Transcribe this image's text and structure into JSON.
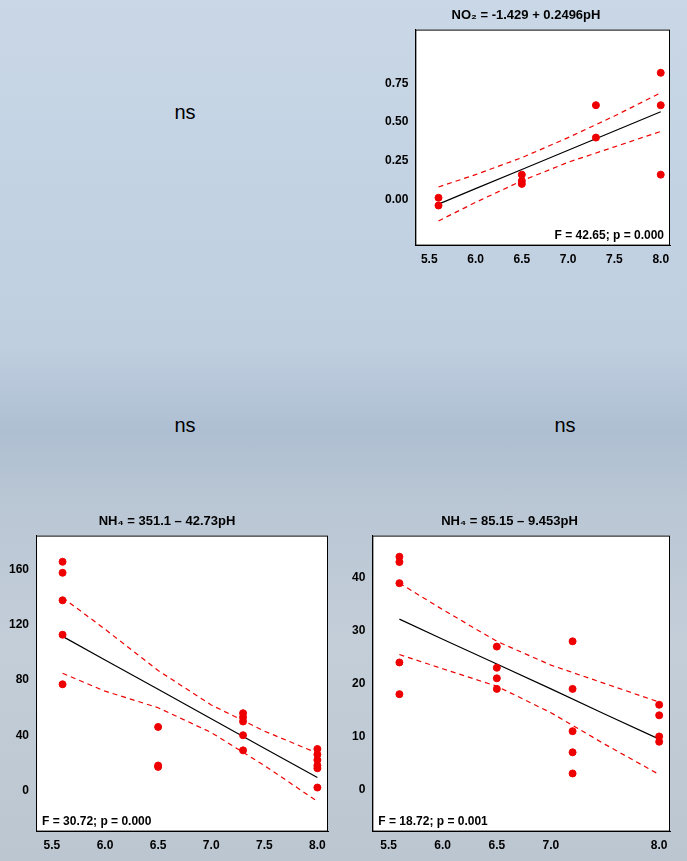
{
  "chart_data": [
    {
      "type": "scatter",
      "title": "NO₂ = -1.429 + 0.2496pH",
      "annotation": "F = 42.65; p = 0.000",
      "grid": false,
      "xlim": [
        5.35,
        8.1
      ],
      "xticks": [
        5.5,
        {
          "value": 6,
          "label": "6.0"
        },
        6.5,
        {
          "value": 7,
          "label": "7.0"
        },
        7.5,
        {
          "value": 8,
          "label": "8.0"
        }
      ],
      "ylim": [
        -0.3,
        1.1
      ],
      "yticks": [
        {
          "value": 0,
          "label": "0.00"
        },
        0.25,
        {
          "value": 0.5,
          "label": "0.50"
        },
        0.75
      ],
      "series": [
        {
          "type": "scatter",
          "color": "#ee0000",
          "marker": "circle",
          "x": [
            5.6,
            5.6,
            6.5,
            6.5,
            6.5,
            7.3,
            7.3,
            8.0,
            8.0,
            8.0
          ],
          "values": [
            0.01,
            -0.04,
            0.16,
            0.12,
            0.1,
            0.61,
            0.4,
            0.82,
            0.61,
            0.16
          ]
        },
        {
          "type": "line",
          "color": "#000000",
          "line_style": "solid",
          "x": [
            5.6,
            6.0,
            6.5,
            7.0,
            7.5,
            8.0
          ],
          "values": [
            -0.031,
            0.069,
            0.193,
            0.318,
            0.443,
            0.568
          ]
        },
        {
          "type": "line",
          "color": "#ee0000",
          "line_style": "dashed",
          "x": [
            5.6,
            6.0,
            6.5,
            7.0,
            7.5,
            8.0
          ],
          "values": [
            -0.14,
            -0.02,
            0.12,
            0.24,
            0.34,
            0.44
          ]
        },
        {
          "type": "line",
          "color": "#ee0000",
          "line_style": "dashed",
          "x": [
            5.6,
            6.0,
            6.5,
            7.0,
            7.5,
            8.0
          ],
          "values": [
            0.08,
            0.16,
            0.27,
            0.4,
            0.54,
            0.69
          ]
        }
      ]
    },
    {
      "type": "scatter",
      "title": "NH₄ = 351.1 – 42.73pH",
      "annotation": "F = 30.72; p = 0.000",
      "grid": false,
      "xlim": [
        5.35,
        8.1
      ],
      "xticks": [
        5.5,
        {
          "value": 6,
          "label": "6.0"
        },
        6.5,
        {
          "value": 7,
          "label": "7.0"
        },
        7.5,
        {
          "value": 8,
          "label": "8.0"
        }
      ],
      "ylim": [
        -30,
        185
      ],
      "yticks": [
        0,
        40,
        80,
        120,
        160
      ],
      "series": [
        {
          "type": "scatter",
          "color": "#ee0000",
          "marker": "circle",
          "x": [
            5.6,
            5.6,
            5.6,
            5.6,
            5.6,
            6.5,
            6.5,
            6.5,
            7.3,
            7.3,
            7.3,
            7.3,
            7.3,
            8.0,
            8.0,
            8.0,
            8.0,
            8.0,
            8.0
          ],
          "values": [
            166,
            158,
            138,
            113,
            77,
            46,
            18,
            17,
            56,
            53,
            50,
            40,
            29,
            30,
            26,
            22,
            18,
            16,
            2
          ]
        },
        {
          "type": "line",
          "color": "#000000",
          "line_style": "solid",
          "x": [
            5.6,
            6.0,
            6.5,
            7.0,
            7.5,
            8.0
          ],
          "values": [
            111.8,
            94.7,
            73.4,
            52.0,
            30.6,
            9.3
          ]
        },
        {
          "type": "line",
          "color": "#ee0000",
          "line_style": "dashed",
          "x": [
            5.6,
            6.0,
            6.5,
            7.0,
            7.5,
            8.0
          ],
          "values": [
            85,
            72,
            60,
            42,
            18,
            -8
          ]
        },
        {
          "type": "line",
          "color": "#ee0000",
          "line_style": "dashed",
          "x": [
            5.6,
            6.0,
            6.5,
            7.0,
            7.5,
            8.0
          ],
          "values": [
            140,
            117,
            87,
            62,
            43,
            27
          ]
        }
      ]
    },
    {
      "type": "scatter",
      "title": "NH₄ = 85.15 – 9.453pH",
      "annotation": "F = 18.72; p = 0.001",
      "grid": false,
      "xlim": [
        5.35,
        8.1
      ],
      "xticks": [
        5.5,
        {
          "value": 6,
          "label": "6.0"
        },
        6.5,
        {
          "value": 7,
          "label": "7.0"
        },
        {
          "value": 8,
          "label": "8.0"
        }
      ],
      "ylim": [
        -8,
        48
      ],
      "yticks": [
        0,
        10,
        20,
        30,
        40
      ],
      "series": [
        {
          "type": "scatter",
          "color": "#ee0000",
          "marker": "circle",
          "x": [
            5.6,
            5.6,
            5.6,
            5.6,
            5.6,
            6.5,
            6.5,
            6.5,
            6.5,
            7.2,
            7.2,
            7.2,
            7.2,
            7.2,
            8.0,
            8.0,
            8.0,
            8.0
          ],
          "values": [
            44,
            43,
            39,
            24,
            18,
            27,
            23,
            21,
            19,
            28,
            19,
            11,
            7,
            3,
            16,
            14,
            10,
            9
          ]
        },
        {
          "type": "line",
          "color": "#000000",
          "line_style": "solid",
          "x": [
            5.6,
            6.0,
            6.5,
            7.0,
            7.5,
            8.0
          ],
          "values": [
            32.2,
            28.4,
            23.7,
            19.0,
            14.2,
            9.5
          ]
        },
        {
          "type": "line",
          "color": "#ee0000",
          "line_style": "dashed",
          "x": [
            5.6,
            6.0,
            6.5,
            7.0,
            7.5,
            8.0
          ],
          "values": [
            25.5,
            22.8,
            19.5,
            14.5,
            8.5,
            2.8
          ]
        },
        {
          "type": "line",
          "color": "#ee0000",
          "line_style": "dashed",
          "x": [
            5.6,
            6.0,
            6.5,
            7.0,
            7.5,
            8.0
          ],
          "values": [
            39,
            34,
            28,
            23.5,
            20,
            16.5
          ]
        }
      ]
    }
  ],
  "annotations": [
    "ns",
    "ns",
    "ns"
  ]
}
